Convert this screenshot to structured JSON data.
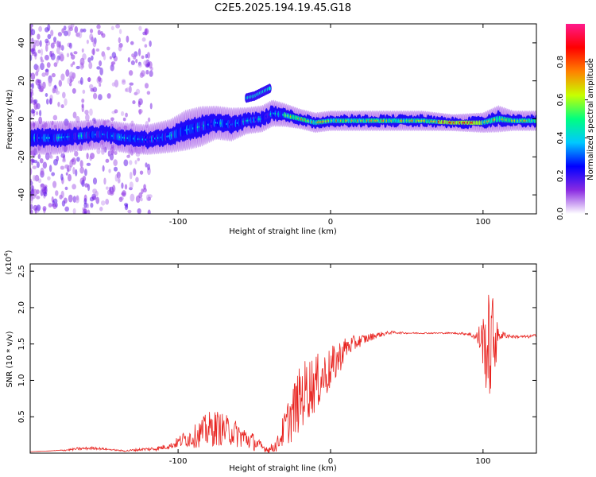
{
  "title": "C2E5.2025.194.19.45.G18",
  "chart_data": [
    {
      "type": "heatmap",
      "title": "C2E5.2025.194.19.45.G18",
      "xlabel": "Height of straight line (km)",
      "ylabel": "Frequency (Hz)",
      "xlim": [
        -197,
        135
      ],
      "ylim": [
        -50,
        50
      ],
      "xticks": [
        "-100",
        "0",
        "100"
      ],
      "yticks": [
        "-40",
        "-20",
        "0",
        "20",
        "40"
      ],
      "colorbar": {
        "label": "Normalized spectral amplitude",
        "range": [
          0,
          1
        ],
        "ticks": [
          "0.0",
          "0.2",
          "0.4",
          "0.6",
          "0.8"
        ],
        "colors": [
          "#ffffff",
          "#8a2be2",
          "#0000ff",
          "#00c8ff",
          "#00ff80",
          "#c8ff00",
          "#ff8000",
          "#ff0000",
          "#ff1a8c"
        ]
      },
      "ridge": {
        "x": [
          -195,
          -180,
          -165,
          -150,
          -135,
          -120,
          -105,
          -95,
          -85,
          -75,
          -65,
          -55,
          -45,
          -38,
          -30,
          -20,
          -10,
          0,
          20,
          40,
          60,
          80,
          100,
          110,
          120,
          135
        ],
        "y": [
          -10,
          -10,
          -9,
          -8,
          -10,
          -11,
          -9,
          -6,
          -4,
          -2,
          -3,
          -1,
          0,
          3,
          2,
          0,
          -2,
          -1,
          -1,
          -1,
          -1,
          -2,
          -2,
          0,
          -1,
          -1
        ],
        "width": [
          10,
          10,
          9,
          9,
          9,
          9,
          10,
          12,
          12,
          10,
          10,
          8,
          8,
          8,
          7,
          6,
          6,
          6,
          6,
          6,
          6,
          5,
          6,
          8,
          6,
          6
        ]
      },
      "side_branch": {
        "x": [
          -55,
          -50,
          -45,
          -40
        ],
        "y": [
          11,
          12,
          14,
          16
        ]
      }
    },
    {
      "type": "line",
      "xlabel": "Height of straight line (km)",
      "ylabel": "SNR (10 * v/v)",
      "y_multiplier": "(x10^4)",
      "xlim": [
        -197,
        135
      ],
      "ylim": [
        0,
        2.6
      ],
      "xticks": [
        "-100",
        "0",
        "100"
      ],
      "yticks": [
        "0.5",
        "1.0",
        "1.5",
        "2.0",
        "2.5"
      ],
      "color": "#e8231f",
      "series": [
        {
          "x": [
            -197,
            -185,
            -175,
            -165,
            -155,
            -145,
            -135,
            -125,
            -115,
            -105,
            -100,
            -95,
            -90,
            -85,
            -80,
            -75,
            -70,
            -65,
            -60,
            -55,
            -50,
            -45,
            -40,
            -35,
            -30,
            -25,
            -20,
            -15,
            -10,
            -5,
            0,
            5,
            10,
            20,
            30,
            40,
            50,
            60,
            70,
            80,
            90,
            95,
            100,
            103,
            105,
            108,
            110,
            115,
            120,
            125,
            130,
            135
          ],
          "y": [
            0.02,
            0.03,
            0.04,
            0.06,
            0.07,
            0.05,
            0.03,
            0.05,
            0.06,
            0.1,
            0.15,
            0.2,
            0.22,
            0.28,
            0.32,
            0.35,
            0.32,
            0.3,
            0.25,
            0.2,
            0.15,
            0.08,
            0.05,
            0.12,
            0.35,
            0.55,
            0.75,
            0.9,
            0.95,
            1.05,
            1.15,
            1.3,
            1.45,
            1.55,
            1.62,
            1.66,
            1.65,
            1.65,
            1.65,
            1.65,
            1.64,
            1.6,
            1.55,
            1.4,
            1.5,
            1.6,
            1.62,
            1.62,
            1.6,
            1.6,
            1.6,
            1.62
          ],
          "noise": [
            0,
            0,
            0.01,
            0.02,
            0.02,
            0.01,
            0.01,
            0.02,
            0.03,
            0.04,
            0.08,
            0.12,
            0.15,
            0.2,
            0.25,
            0.25,
            0.22,
            0.2,
            0.18,
            0.15,
            0.12,
            0.06,
            0.05,
            0.1,
            0.25,
            0.4,
            0.45,
            0.45,
            0.4,
            0.35,
            0.3,
            0.25,
            0.15,
            0.08,
            0.04,
            0.02,
            0.01,
            0.01,
            0.01,
            0.01,
            0.02,
            0.05,
            0.35,
            0.75,
            0.8,
            0.5,
            0.08,
            0.04,
            0.02,
            0.02,
            0.02,
            0.02
          ]
        }
      ]
    }
  ]
}
